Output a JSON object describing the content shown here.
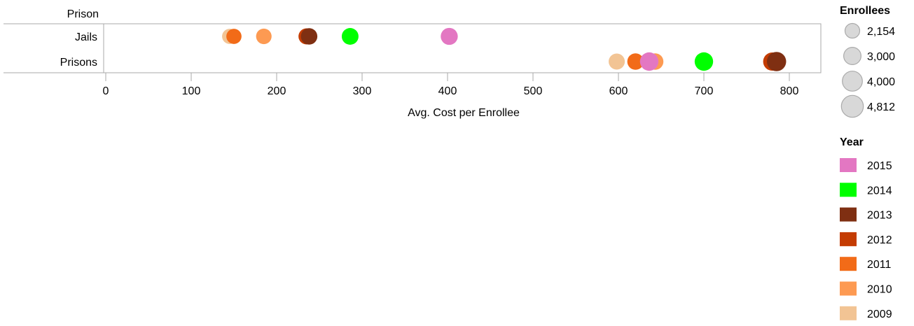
{
  "chart_data": {
    "type": "scatter",
    "title": "",
    "xlabel": "Avg. Cost per Enrollee",
    "ylabel": "Prison",
    "xlim": [
      -150,
      840
    ],
    "x_ticks": [
      0,
      100,
      200,
      300,
      400,
      500,
      600,
      700,
      800
    ],
    "categories": [
      "Jails",
      "Prisons"
    ],
    "grid": false,
    "size_legend": {
      "title": "Enrollees",
      "entries": [
        {
          "label": "2,154",
          "value": 2154
        },
        {
          "label": "3,000",
          "value": 3000
        },
        {
          "label": "4,000",
          "value": 4000
        },
        {
          "label": "4,812",
          "value": 4812
        }
      ]
    },
    "color_legend": {
      "title": "Year",
      "placement": "right",
      "entries": [
        {
          "label": "2015",
          "color": "#e377c2"
        },
        {
          "label": "2014",
          "color": "#00ff00"
        },
        {
          "label": "2013",
          "color": "#7f2f12"
        },
        {
          "label": "2012",
          "color": "#c43c02"
        },
        {
          "label": "2011",
          "color": "#f26b18"
        },
        {
          "label": "2010",
          "color": "#fd9a52"
        },
        {
          "label": "2009",
          "color": "#f2c494"
        }
      ]
    },
    "points": [
      {
        "category": "Jails",
        "year": "2009",
        "x": 145,
        "enrollees": 2300
      },
      {
        "category": "Jails",
        "year": "2011",
        "x": 150,
        "enrollees": 2300
      },
      {
        "category": "Jails",
        "year": "2010",
        "x": 185,
        "enrollees": 2400
      },
      {
        "category": "Jails",
        "year": "2012",
        "x": 235,
        "enrollees": 2600
      },
      {
        "category": "Jails",
        "year": "2013",
        "x": 238,
        "enrollees": 2700
      },
      {
        "category": "Jails",
        "year": "2014",
        "x": 286,
        "enrollees": 2800
      },
      {
        "category": "Jails",
        "year": "2015",
        "x": 402,
        "enrollees": 2900
      },
      {
        "category": "Prisons",
        "year": "2009",
        "x": 598,
        "enrollees": 2600
      },
      {
        "category": "Prisons",
        "year": "2011",
        "x": 620,
        "enrollees": 2700
      },
      {
        "category": "Prisons",
        "year": "2010",
        "x": 643,
        "enrollees": 2700
      },
      {
        "category": "Prisons",
        "year": "2015",
        "x": 636,
        "enrollees": 3400
      },
      {
        "category": "Prisons",
        "year": "2014",
        "x": 700,
        "enrollees": 3400
      },
      {
        "category": "Prisons",
        "year": "2012",
        "x": 780,
        "enrollees": 3300
      },
      {
        "category": "Prisons",
        "year": "2013",
        "x": 785,
        "enrollees": 3700
      }
    ]
  }
}
